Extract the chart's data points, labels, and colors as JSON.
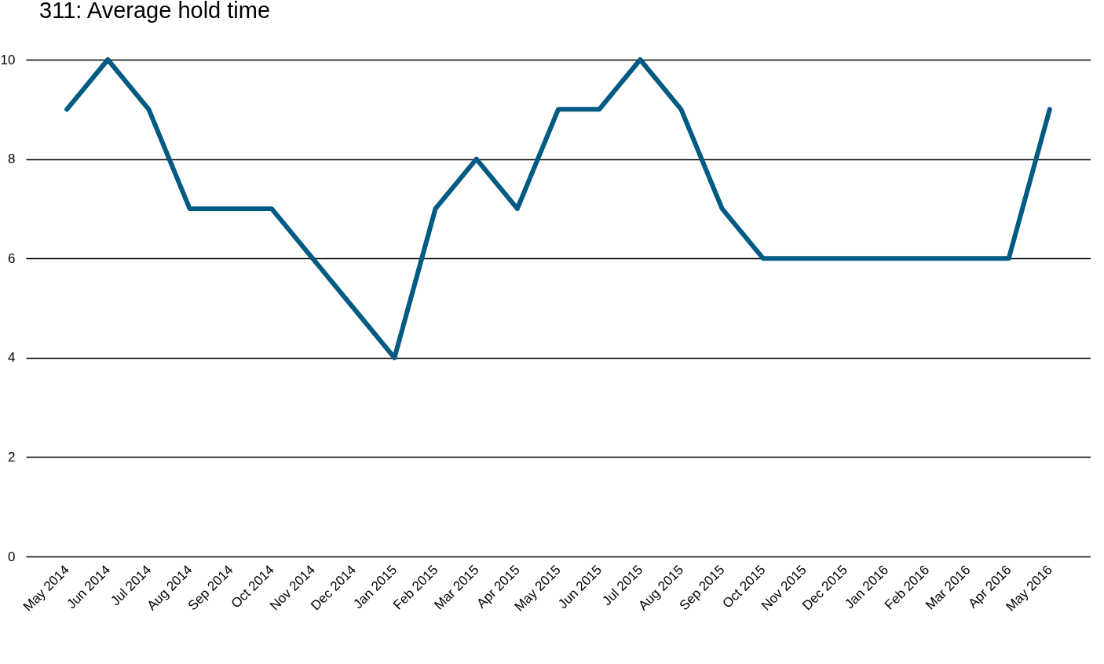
{
  "chart_data": {
    "type": "line",
    "title": "311: Average hold time",
    "categories": [
      "May 2014",
      "Jun 2014",
      "Jul 2014",
      "Aug 2014",
      "Sep 2014",
      "Oct 2014",
      "Nov 2014",
      "Dec 2014",
      "Jan 2015",
      "Feb 2015",
      "Mar 2015",
      "Apr 2015",
      "May 2015",
      "Jun 2015",
      "Jul 2015",
      "Aug 2015",
      "Sep 2015",
      "Oct 2015",
      "Nov 2015",
      "Dec 2015",
      "Jan 2016",
      "Feb 2016",
      "Mar 2016",
      "Apr 2016",
      "May 2016"
    ],
    "series": [
      {
        "color": "#005a82",
        "values": [
          9,
          10,
          9,
          7,
          7,
          7,
          6,
          5,
          4,
          7,
          8,
          7,
          9,
          9,
          10,
          9,
          7,
          6,
          6,
          6,
          6,
          6,
          6,
          6,
          9
        ]
      }
    ],
    "ylim": [
      0,
      10
    ],
    "yticks": [
      0,
      2,
      4,
      6,
      8,
      10
    ],
    "grid": "y",
    "legend": false,
    "marker": "none",
    "line_style": "solid"
  }
}
